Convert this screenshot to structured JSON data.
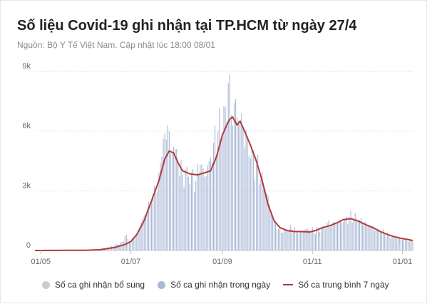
{
  "header": {
    "title": "Số liệu Covid-19 ghi nhận tại TP.HCM từ ngày 27/4",
    "source": "Nguồn: Bộ Y Tế Việt Nam. Cập nhật lúc 18:00 08/01"
  },
  "legend": {
    "supplementary": "Số ca ghi nhận bổ sung",
    "daily": "Số ca ghi nhận trong ngày",
    "average": "Số ca trung bình 7 ngày"
  },
  "colors": {
    "supplementary": "#cccccc",
    "daily": "#a9b8d6",
    "average": "#b23a3a",
    "grid": "#e2e2e2"
  },
  "chart_data": {
    "type": "bar",
    "title": "Số liệu Covid-19 ghi nhận tại TP.HCM từ ngày 27/4",
    "ylim": [
      0,
      9000
    ],
    "y_ticks": [
      0,
      3000,
      6000,
      9000
    ],
    "y_tick_labels": [
      "0",
      "3k",
      "6k",
      "9k"
    ],
    "x_tick_labels": [
      "01/05",
      "01/07",
      "01/09",
      "01/11",
      "01/01"
    ],
    "grid": true,
    "legend_position": "bottom",
    "x_range": [
      "2021-04-27",
      "2022-01-08"
    ],
    "daily": [
      [
        "2021-04-27",
        0
      ],
      [
        "2021-05-15",
        5
      ],
      [
        "2021-06-01",
        20
      ],
      [
        "2021-06-10",
        50
      ],
      [
        "2021-06-15",
        150
      ],
      [
        "2021-06-20",
        250
      ],
      [
        "2021-06-25",
        420
      ],
      [
        "2021-06-27",
        700
      ],
      [
        "2021-07-01",
        500
      ],
      [
        "2021-07-05",
        800
      ],
      [
        "2021-07-08",
        1400
      ],
      [
        "2021-07-12",
        1900
      ],
      [
        "2021-07-15",
        2500
      ],
      [
        "2021-07-18",
        2900
      ],
      [
        "2021-07-20",
        3900
      ],
      [
        "2021-07-22",
        4700
      ],
      [
        "2021-07-24",
        5900
      ],
      [
        "2021-07-26",
        6300
      ],
      [
        "2021-07-28",
        4900
      ],
      [
        "2021-07-30",
        5200
      ],
      [
        "2021-08-02",
        4400
      ],
      [
        "2021-08-05",
        3800
      ],
      [
        "2021-08-08",
        4200
      ],
      [
        "2021-08-11",
        3900
      ],
      [
        "2021-08-14",
        3500
      ],
      [
        "2021-08-17",
        4300
      ],
      [
        "2021-08-20",
        3700
      ],
      [
        "2021-08-23",
        4500
      ],
      [
        "2021-08-26",
        5400
      ],
      [
        "2021-08-29",
        6000
      ],
      [
        "2021-09-01",
        5700
      ],
      [
        "2021-09-03",
        7200
      ],
      [
        "2021-09-05",
        8400
      ],
      [
        "2021-09-07",
        6800
      ],
      [
        "2021-09-09",
        7400
      ],
      [
        "2021-09-12",
        6500
      ],
      [
        "2021-09-15",
        6200
      ],
      [
        "2021-09-18",
        5600
      ],
      [
        "2021-09-21",
        5100
      ],
      [
        "2021-09-24",
        4300
      ],
      [
        "2021-09-27",
        3600
      ],
      [
        "2021-09-30",
        3100
      ],
      [
        "2021-10-03",
        2300
      ],
      [
        "2021-10-06",
        1500
      ],
      [
        "2021-10-09",
        1100
      ],
      [
        "2021-10-12",
        900
      ],
      [
        "2021-10-15",
        1000
      ],
      [
        "2021-10-18",
        1100
      ],
      [
        "2021-10-21",
        1000
      ],
      [
        "2021-10-24",
        950
      ],
      [
        "2021-10-27",
        1050
      ],
      [
        "2021-10-30",
        1000
      ],
      [
        "2021-11-02",
        1000
      ],
      [
        "2021-11-05",
        1100
      ],
      [
        "2021-11-08",
        1200
      ],
      [
        "2021-11-11",
        1400
      ],
      [
        "2021-11-14",
        1300
      ],
      [
        "2021-11-17",
        1400
      ],
      [
        "2021-11-20",
        1500
      ],
      [
        "2021-11-23",
        1600
      ],
      [
        "2021-11-26",
        1700
      ],
      [
        "2021-11-29",
        1600
      ],
      [
        "2021-12-02",
        1500
      ],
      [
        "2021-12-05",
        1400
      ],
      [
        "2021-12-08",
        1300
      ],
      [
        "2021-12-11",
        1200
      ],
      [
        "2021-12-14",
        1000
      ],
      [
        "2021-12-17",
        950
      ],
      [
        "2021-12-20",
        850
      ],
      [
        "2021-12-23",
        750
      ],
      [
        "2021-12-26",
        700
      ],
      [
        "2021-12-29",
        620
      ],
      [
        "2022-01-01",
        560
      ],
      [
        "2022-01-04",
        520
      ],
      [
        "2022-01-08",
        450
      ]
    ],
    "supplementary": [
      [
        "2021-06-27",
        650
      ],
      [
        "2021-07-03",
        300
      ],
      [
        "2021-10-08",
        250
      ],
      [
        "2021-10-10",
        200
      ],
      [
        "2021-11-06",
        700
      ],
      [
        "2021-11-22",
        600
      ],
      [
        "2021-12-30",
        350
      ],
      [
        "2022-01-05",
        300
      ]
    ],
    "avg7": [
      [
        "2021-04-27",
        0
      ],
      [
        "2021-05-31",
        10
      ],
      [
        "2021-06-10",
        40
      ],
      [
        "2021-06-20",
        150
      ],
      [
        "2021-06-27",
        300
      ],
      [
        "2021-07-01",
        450
      ],
      [
        "2021-07-05",
        800
      ],
      [
        "2021-07-10",
        1500
      ],
      [
        "2021-07-15",
        2500
      ],
      [
        "2021-07-20",
        3500
      ],
      [
        "2021-07-24",
        4600
      ],
      [
        "2021-07-27",
        5000
      ],
      [
        "2021-07-30",
        4900
      ],
      [
        "2021-08-02",
        4400
      ],
      [
        "2021-08-05",
        4000
      ],
      [
        "2021-08-10",
        3850
      ],
      [
        "2021-08-15",
        3800
      ],
      [
        "2021-08-20",
        3900
      ],
      [
        "2021-08-24",
        4000
      ],
      [
        "2021-08-28",
        4700
      ],
      [
        "2021-09-01",
        5800
      ],
      [
        "2021-09-04",
        6300
      ],
      [
        "2021-09-06",
        6600
      ],
      [
        "2021-09-08",
        6700
      ],
      [
        "2021-09-11",
        6300
      ],
      [
        "2021-09-13",
        6500
      ],
      [
        "2021-09-16",
        6000
      ],
      [
        "2021-09-20",
        5300
      ],
      [
        "2021-09-24",
        4500
      ],
      [
        "2021-09-28",
        3500
      ],
      [
        "2021-10-02",
        2300
      ],
      [
        "2021-10-06",
        1500
      ],
      [
        "2021-10-10",
        1150
      ],
      [
        "2021-10-15",
        1000
      ],
      [
        "2021-10-20",
        950
      ],
      [
        "2021-10-25",
        950
      ],
      [
        "2021-10-30",
        930
      ],
      [
        "2021-11-03",
        1000
      ],
      [
        "2021-11-08",
        1150
      ],
      [
        "2021-11-13",
        1250
      ],
      [
        "2021-11-18",
        1400
      ],
      [
        "2021-11-22",
        1550
      ],
      [
        "2021-11-27",
        1600
      ],
      [
        "2021-12-02",
        1480
      ],
      [
        "2021-12-07",
        1300
      ],
      [
        "2021-12-12",
        1150
      ],
      [
        "2021-12-17",
        950
      ],
      [
        "2021-12-22",
        800
      ],
      [
        "2021-12-27",
        680
      ],
      [
        "2022-01-01",
        600
      ],
      [
        "2022-01-05",
        550
      ],
      [
        "2022-01-08",
        500
      ]
    ]
  }
}
